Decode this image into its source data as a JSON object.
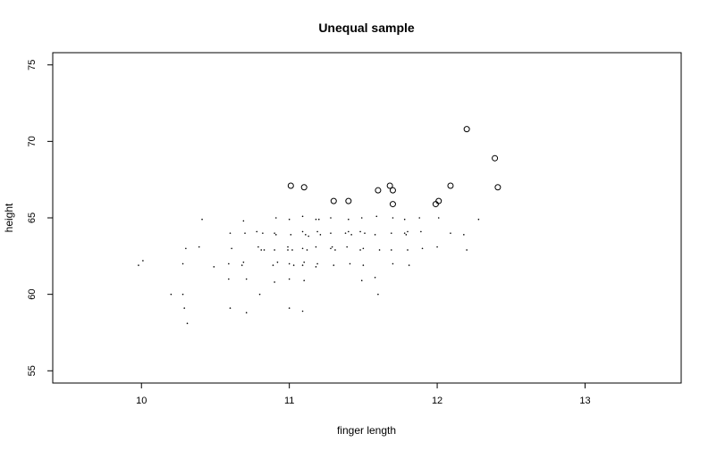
{
  "chart_data": {
    "type": "scatter",
    "title": "Unequal sample",
    "xlabel": "finger length",
    "ylabel": "height",
    "xlim": [
      9.4,
      13.65
    ],
    "ylim": [
      54.2,
      75.8
    ],
    "xticks": [
      "10",
      "11",
      "12",
      "13"
    ],
    "xtick_values": [
      10,
      11,
      12,
      13
    ],
    "yticks": [
      "55",
      "60",
      "65",
      "70",
      "75"
    ],
    "ytick_values": [
      55,
      60,
      65,
      70,
      75
    ],
    "grid": false,
    "legend": "none",
    "series": [
      {
        "marker": "dot",
        "points": [
          [
            9.98,
            61.9
          ],
          [
            10.01,
            62.2
          ],
          [
            10.2,
            60.0
          ],
          [
            10.28,
            60.0
          ],
          [
            10.28,
            62.0
          ],
          [
            10.29,
            59.1
          ],
          [
            10.3,
            63.0
          ],
          [
            10.31,
            58.1
          ],
          [
            10.39,
            63.1
          ],
          [
            10.41,
            64.9
          ],
          [
            10.49,
            61.8
          ],
          [
            10.59,
            62.0
          ],
          [
            10.59,
            61.0
          ],
          [
            10.6,
            64.0
          ],
          [
            10.6,
            59.1
          ],
          [
            10.61,
            63.0
          ],
          [
            10.68,
            61.9
          ],
          [
            10.69,
            62.1
          ],
          [
            10.69,
            64.8
          ],
          [
            10.7,
            64.0
          ],
          [
            10.71,
            61.0
          ],
          [
            10.71,
            58.8
          ],
          [
            10.78,
            64.1
          ],
          [
            10.79,
            63.1
          ],
          [
            10.8,
            60.0
          ],
          [
            10.81,
            62.9
          ],
          [
            10.82,
            64.0
          ],
          [
            10.83,
            62.9
          ],
          [
            10.89,
            61.9
          ],
          [
            10.9,
            62.9
          ],
          [
            10.9,
            64.0
          ],
          [
            10.9,
            60.8
          ],
          [
            10.91,
            63.9
          ],
          [
            10.91,
            65.0
          ],
          [
            10.92,
            62.1
          ],
          [
            10.99,
            63.1
          ],
          [
            10.99,
            62.9
          ],
          [
            11.0,
            64.9
          ],
          [
            11.0,
            62.0
          ],
          [
            11.0,
            59.1
          ],
          [
            11.0,
            61.0
          ],
          [
            11.01,
            63.9
          ],
          [
            11.02,
            62.9
          ],
          [
            11.03,
            61.9
          ],
          [
            11.09,
            64.1
          ],
          [
            11.09,
            65.1
          ],
          [
            11.09,
            63.0
          ],
          [
            11.09,
            61.9
          ],
          [
            11.09,
            58.9
          ],
          [
            11.1,
            62.1
          ],
          [
            11.1,
            60.9
          ],
          [
            11.11,
            63.9
          ],
          [
            11.12,
            62.9
          ],
          [
            11.13,
            63.8
          ],
          [
            11.18,
            64.9
          ],
          [
            11.18,
            63.1
          ],
          [
            11.18,
            61.8
          ],
          [
            11.19,
            64.1
          ],
          [
            11.19,
            62.0
          ],
          [
            11.2,
            64.9
          ],
          [
            11.21,
            63.9
          ],
          [
            11.28,
            65.0
          ],
          [
            11.28,
            64.0
          ],
          [
            11.28,
            63.0
          ],
          [
            11.29,
            63.1
          ],
          [
            11.3,
            61.9
          ],
          [
            11.31,
            62.9
          ],
          [
            11.38,
            64.0
          ],
          [
            11.39,
            63.1
          ],
          [
            11.4,
            64.9
          ],
          [
            11.4,
            64.1
          ],
          [
            11.41,
            62.0
          ],
          [
            11.42,
            63.9
          ],
          [
            11.48,
            64.1
          ],
          [
            11.48,
            62.9
          ],
          [
            11.49,
            60.9
          ],
          [
            11.49,
            65.0
          ],
          [
            11.5,
            63.0
          ],
          [
            11.5,
            61.9
          ],
          [
            11.51,
            64.0
          ],
          [
            11.58,
            63.9
          ],
          [
            11.58,
            61.1
          ],
          [
            11.59,
            65.1
          ],
          [
            11.6,
            60.0
          ],
          [
            11.61,
            62.9
          ],
          [
            11.69,
            64.0
          ],
          [
            11.69,
            62.9
          ],
          [
            11.7,
            62.0
          ],
          [
            11.7,
            65.0
          ],
          [
            11.78,
            64.0
          ],
          [
            11.78,
            64.9
          ],
          [
            11.79,
            63.9
          ],
          [
            11.8,
            64.1
          ],
          [
            11.8,
            62.9
          ],
          [
            11.81,
            61.9
          ],
          [
            11.88,
            65.0
          ],
          [
            11.89,
            64.1
          ],
          [
            11.9,
            63.0
          ],
          [
            12.0,
            63.1
          ],
          [
            12.01,
            65.0
          ],
          [
            12.09,
            64.0
          ],
          [
            12.18,
            63.9
          ],
          [
            12.2,
            62.9
          ],
          [
            12.28,
            64.9
          ]
        ]
      },
      {
        "marker": "open-circle",
        "points": [
          [
            11.01,
            67.1
          ],
          [
            11.1,
            67.0
          ],
          [
            11.3,
            66.1
          ],
          [
            11.4,
            66.1
          ],
          [
            11.6,
            66.8
          ],
          [
            11.68,
            67.1
          ],
          [
            11.7,
            66.8
          ],
          [
            11.7,
            65.9
          ],
          [
            11.99,
            65.9
          ],
          [
            12.01,
            66.1
          ],
          [
            12.09,
            67.1
          ],
          [
            12.2,
            70.8
          ],
          [
            12.39,
            68.9
          ],
          [
            12.41,
            67.0
          ]
        ]
      }
    ]
  }
}
